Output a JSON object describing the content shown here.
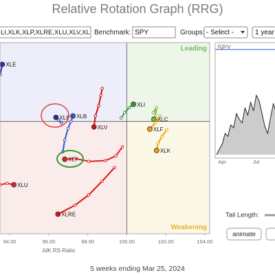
{
  "ui": {
    "title": "Relative Rotation Graph (RRG)",
    "symbols_input": "LI,XLK,XLP,XLRE,XLU,XLV,XL",
    "benchmark_label": "Benchmark:",
    "benchmark_value": "SPY",
    "groups_label": "Groups:",
    "groups_value": "- Select -",
    "period_value": "1 year",
    "tail_length_label": "Tail Length:",
    "animate_button": "animate",
    "footer": "5 weeks ending Mar 25, 2024"
  },
  "chart_data": [
    {
      "type": "rrg",
      "xlabel": "JdK RS-Ratio",
      "xlim": [
        93.5,
        104.25
      ],
      "ylim": [
        95.3,
        103.3
      ],
      "center": [
        100,
        100
      ],
      "xticks": [
        {
          "value": 94,
          "label": "94.00"
        },
        {
          "value": 96,
          "label": "96.00"
        },
        {
          "value": 98,
          "label": "98.00"
        },
        {
          "value": 100,
          "label": "100.00"
        },
        {
          "value": 102,
          "label": "102.00"
        },
        {
          "value": 104,
          "label": "104.00"
        }
      ],
      "quadrant_labels": {
        "leading": "Leading",
        "weakening": "Weakening"
      },
      "series": [
        {
          "name": "XLE",
          "color": "#3333aa",
          "x": [
            93.51,
            93.62
          ],
          "y": [
            101.96,
            102.39
          ]
        },
        {
          "name": "XLP",
          "color": "#2a2aa0",
          "x": [
            96.65,
            96.51,
            96.37
          ],
          "y": [
            99.94,
            100.06,
            100.17
          ]
        },
        {
          "name": "XLB",
          "color": "#3355cc",
          "x": [
            96.72,
            96.82,
            96.99,
            97.14,
            97.24
          ],
          "y": [
            98.73,
            99.22,
            99.71,
            100,
            100.23
          ]
        },
        {
          "name": "XLV",
          "color": "#cc1111",
          "x": [
            98.74,
            98.67,
            98.56,
            98.39,
            98.32
          ],
          "y": [
            101.38,
            101.09,
            100.66,
            100.23,
            99.77
          ]
        },
        {
          "name": "XLI",
          "color": "#339933",
          "x": [
            99.71,
            99.89,
            100.13,
            100.34
          ],
          "y": [
            100.14,
            100.37,
            100.58,
            100.72
          ]
        },
        {
          "name": "XLC",
          "color": "#77bb33",
          "x": [
            101.35,
            101.53,
            101.46,
            101.39
          ],
          "y": [
            100.37,
            100.58,
            100.23,
            100.09
          ]
        },
        {
          "name": "XLF",
          "color": "#f0a000",
          "x": [
            101.7,
            101.46,
            101.18
          ],
          "y": [
            100.23,
            99.94,
            99.68
          ]
        },
        {
          "name": "XLK",
          "color": "#f0a000",
          "x": [
            102.05,
            101.8,
            101.6,
            101.53
          ],
          "y": [
            99.65,
            99.37,
            99.08,
            98.79
          ]
        },
        {
          "name": "XLY",
          "color": "#dd2222",
          "x": [
            99.78,
            99.44,
            98.91,
            98.04,
            97.34,
            96.82
          ],
          "y": [
            98.94,
            98.56,
            98.36,
            98.33,
            98.45,
            98.42
          ]
        },
        {
          "name": "XLRE",
          "color": "#dd1111",
          "x": [
            99.37,
            98.74,
            98.04,
            97.34,
            96.47
          ],
          "y": [
            98.07,
            97.5,
            96.92,
            96.49,
            96.12
          ]
        },
        {
          "name": "XLU",
          "color": "#dd2222",
          "x": [
            93.51,
            93.86,
            94.21
          ],
          "y": [
            97.35,
            97.41,
            97.35
          ]
        }
      ]
    },
    {
      "type": "area",
      "title": "SPY",
      "categories": [
        null,
        null,
        "Apr",
        null,
        null,
        null,
        null,
        null,
        null,
        null,
        null,
        null,
        null,
        null,
        "Jul",
        null,
        null,
        null,
        null,
        null,
        null,
        null,
        null,
        null
      ],
      "values": [
        410,
        418,
        425,
        440,
        436,
        452,
        448,
        468,
        460,
        455,
        476,
        466,
        484,
        472,
        494,
        486,
        468,
        450,
        440,
        462,
        482,
        470,
        500,
        512
      ]
    }
  ]
}
